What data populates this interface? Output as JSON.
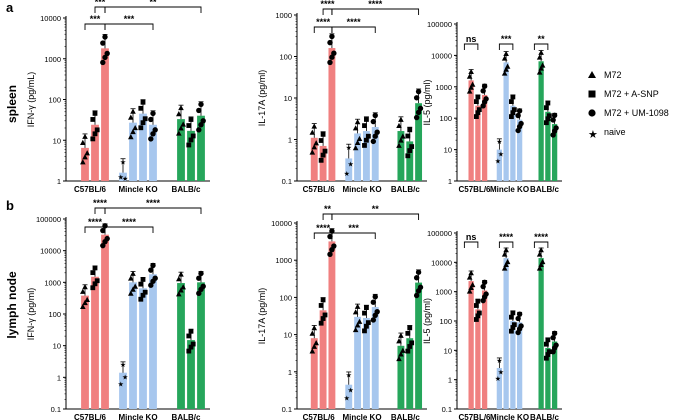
{
  "colors": {
    "c57": "#f08080",
    "mincle": "#a7c7ee",
    "balb": "#26a65b",
    "axis": "#000000",
    "point": "#000000"
  },
  "legend": [
    {
      "label": "M72",
      "marker": "triangle"
    },
    {
      "label": "M72 + A-SNP",
      "marker": "square"
    },
    {
      "label": "M72 + UM-1098",
      "marker": "circle"
    },
    {
      "label": "naive",
      "marker": "star"
    }
  ],
  "rows": [
    {
      "letter": "a",
      "label": "spleen"
    },
    {
      "letter": "b",
      "label": "lymph node"
    }
  ],
  "chart_data": [
    {
      "type": "bar",
      "row": "a",
      "title": "",
      "ylabel": "IFN-γ (pg/mL)",
      "scale": "log",
      "ylim": [
        1,
        10000
      ],
      "yticks": [
        "1",
        "10",
        "100",
        "1000",
        "10000"
      ],
      "groups": [
        "C57BL/6",
        "Mincle KO",
        "BALB/c"
      ],
      "series": [
        {
          "name": "naive",
          "values": [
            null,
            1.6,
            null
          ]
        },
        {
          "name": "M72",
          "values": [
            6.5,
            27,
            33
          ]
        },
        {
          "name": "M72 + A-SNP",
          "values": [
            24,
            45,
            17
          ]
        },
        {
          "name": "M72 + UM-1098",
          "values": [
            1800,
            24,
            40
          ]
        }
      ],
      "significance": [
        {
          "label": "***"
        },
        {
          "label": "**"
        },
        {
          "label": "***"
        },
        {
          "label": "***"
        }
      ]
    },
    {
      "type": "bar",
      "row": "a",
      "title": "",
      "ylabel": "IL-17A (pg/ml)",
      "scale": "log",
      "ylim": [
        0.1,
        1000
      ],
      "yticks": [
        "0.1",
        "1",
        "10",
        "100",
        "1000"
      ],
      "groups": [
        "C57BL/6",
        "Mincle KO",
        "BALB/c"
      ],
      "series": [
        {
          "name": "naive",
          "values": [
            null,
            0.35,
            null
          ]
        },
        {
          "name": "M72",
          "values": [
            1.1,
            1.4,
            1.6
          ]
        },
        {
          "name": "M72 + A-SNP",
          "values": [
            0.7,
            1.6,
            0.9
          ]
        },
        {
          "name": "M72 + UM-1098",
          "values": [
            160,
            2.0,
            7.5
          ]
        }
      ],
      "significance": [
        {
          "label": "****"
        },
        {
          "label": "****"
        },
        {
          "label": "****"
        },
        {
          "label": "****"
        }
      ]
    },
    {
      "type": "bar",
      "row": "a",
      "title": "",
      "ylabel": "IL-5 (pg/ml)",
      "scale": "log",
      "ylim": [
        1,
        100000
      ],
      "yticks": [
        "1",
        "10",
        "100",
        "1000",
        "10000",
        "100000"
      ],
      "groups": [
        "C57BL/6",
        "Mincle KO",
        "BALB/c"
      ],
      "series": [
        {
          "name": "naive",
          "values": [
            null,
            10,
            null
          ]
        },
        {
          "name": "M72",
          "values": [
            1600,
            6000,
            6500
          ]
        },
        {
          "name": "M72 + A-SNP",
          "values": [
            250,
            250,
            160
          ]
        },
        {
          "name": "M72 + UM-1098",
          "values": [
            550,
            90,
            65
          ]
        }
      ],
      "significance": [
        {
          "label": "ns"
        },
        {
          "label": "***"
        },
        {
          "label": "**"
        }
      ]
    },
    {
      "type": "bar",
      "row": "b",
      "title": "",
      "ylabel": "IFN-γ (pg/ml)",
      "scale": "log",
      "ylim": [
        0.1,
        100000
      ],
      "yticks": [
        "0.1",
        "1",
        "10",
        "100",
        "1000",
        "10000",
        "100000"
      ],
      "groups": [
        "C57BL/6",
        "Mincle KO",
        "BALB/c"
      ],
      "series": [
        {
          "name": "naive",
          "values": [
            null,
            1.4,
            null
          ]
        },
        {
          "name": "M72",
          "values": [
            380,
            1000,
            950
          ]
        },
        {
          "name": "M72 + A-SNP",
          "values": [
            1500,
            650,
            15
          ]
        },
        {
          "name": "M72 + UM-1098",
          "values": [
            32000,
            1800,
            1000
          ]
        }
      ],
      "significance": [
        {
          "label": "****"
        },
        {
          "label": "****"
        },
        {
          "label": "****"
        },
        {
          "label": "****"
        }
      ]
    },
    {
      "type": "bar",
      "row": "b",
      "title": "",
      "ylabel": "IL-17A (pg/ml)",
      "scale": "log",
      "ylim": [
        0.1,
        10000
      ],
      "yticks": [
        "0.1",
        "1",
        "10",
        "100",
        "1000",
        "10000"
      ],
      "groups": [
        "C57BL/6",
        "Mincle KO",
        "BALB/c"
      ],
      "series": [
        {
          "name": "naive",
          "values": [
            null,
            0.45,
            null
          ]
        },
        {
          "name": "M72",
          "values": [
            8,
            30,
            5
          ]
        },
        {
          "name": "M72 + A-SNP",
          "values": [
            45,
            28,
            8
          ]
        },
        {
          "name": "M72 + UM-1098",
          "values": [
            3200,
            55,
            250
          ]
        }
      ],
      "significance": [
        {
          "label": "**"
        },
        {
          "label": "**"
        },
        {
          "label": "****"
        },
        {
          "label": "***"
        }
      ]
    },
    {
      "type": "bar",
      "row": "b",
      "title": "",
      "ylabel": "IL-5 (pg/ml)",
      "scale": "log",
      "ylim": [
        0.1,
        100000
      ],
      "yticks": [
        "0.1",
        "1",
        "10",
        "100",
        "1000",
        "10000",
        "100000"
      ],
      "groups": [
        "C57BL/6",
        "Mincle KO",
        "BALB/c"
      ],
      "series": [
        {
          "name": "naive",
          "values": [
            null,
            2.5,
            null
          ]
        },
        {
          "name": "M72",
          "values": [
            2300,
            14000,
            14000
          ]
        },
        {
          "name": "M72 + A-SNP",
          "values": [
            250,
            100,
            12
          ]
        },
        {
          "name": "M72 + UM-1098",
          "values": [
            1100,
            90,
            20
          ]
        }
      ],
      "significance": [
        {
          "label": "ns"
        },
        {
          "label": "****"
        },
        {
          "label": "****"
        }
      ]
    }
  ]
}
